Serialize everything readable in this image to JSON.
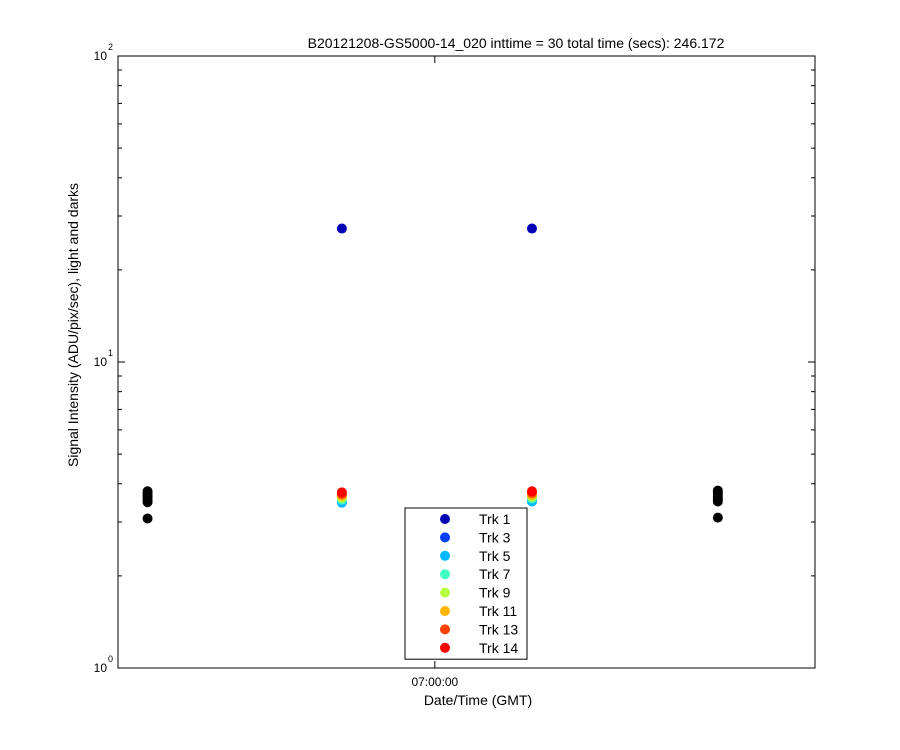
{
  "chart_data": {
    "type": "scatter",
    "title": "B20121208-GS5000-14_020 inttime = 30 total time (secs): 246.172",
    "xlabel": "Date/Time (GMT)",
    "ylabel": "Signal Intensity (ADU/pix/sec), light and darks",
    "yscale": "log",
    "ylim": [
      1,
      100
    ],
    "y_ticks": [
      {
        "value": 1,
        "base": "10",
        "exp": "0"
      },
      {
        "value": 10,
        "base": "10",
        "exp": "1"
      },
      {
        "value": 100,
        "base": "10",
        "exp": "2"
      }
    ],
    "xlim": [
      "06:58:45",
      "07:01:30"
    ],
    "x_ticks": [
      {
        "value": "07:00:00",
        "label": "07:00:00"
      }
    ],
    "legend_position": "bottom-center",
    "series": [
      {
        "name": "Trk 1",
        "color": "#0000b4",
        "points": [
          {
            "x": "06:59:38",
            "y": 27.3
          },
          {
            "x": "07:00:23",
            "y": 27.3
          }
        ]
      },
      {
        "name": "Trk 3",
        "color": "#0040ff",
        "points": [
          {
            "x": "06:59:38",
            "y": 3.5
          },
          {
            "x": "07:00:23",
            "y": 3.52
          }
        ]
      },
      {
        "name": "Trk 5",
        "color": "#00b8ff",
        "points": [
          {
            "x": "06:59:38",
            "y": 3.47
          },
          {
            "x": "07:00:23",
            "y": 3.5
          }
        ]
      },
      {
        "name": "Trk 7",
        "color": "#40ffc0",
        "points": [
          {
            "x": "06:59:38",
            "y": 3.55
          },
          {
            "x": "07:00:23",
            "y": 3.58
          }
        ]
      },
      {
        "name": "Trk 9",
        "color": "#b4ff40",
        "points": [
          {
            "x": "06:59:38",
            "y": 3.6
          },
          {
            "x": "07:00:23",
            "y": 3.63
          }
        ]
      },
      {
        "name": "Trk 11",
        "color": "#ffb400",
        "points": [
          {
            "x": "06:59:38",
            "y": 3.65
          },
          {
            "x": "07:00:23",
            "y": 3.68
          }
        ]
      },
      {
        "name": "Trk 13",
        "color": "#ff4000",
        "points": [
          {
            "x": "06:59:38",
            "y": 3.7
          },
          {
            "x": "07:00:23",
            "y": 3.73
          }
        ]
      },
      {
        "name": "Trk 14",
        "color": "#ff0000",
        "points": [
          {
            "x": "06:59:38",
            "y": 3.75
          },
          {
            "x": "07:00:23",
            "y": 3.78
          }
        ]
      },
      {
        "name": "",
        "color": "#000000",
        "points": [
          {
            "x": "06:58:52",
            "y": 3.08
          },
          {
            "x": "06:58:52",
            "y": 3.48
          },
          {
            "x": "06:58:52",
            "y": 3.54
          },
          {
            "x": "06:58:52",
            "y": 3.6
          },
          {
            "x": "06:58:52",
            "y": 3.66
          },
          {
            "x": "06:58:52",
            "y": 3.72
          },
          {
            "x": "06:58:52",
            "y": 3.78
          },
          {
            "x": "07:01:07",
            "y": 3.1
          },
          {
            "x": "07:01:07",
            "y": 3.5
          },
          {
            "x": "07:01:07",
            "y": 3.56
          },
          {
            "x": "07:01:07",
            "y": 3.62
          },
          {
            "x": "07:01:07",
            "y": 3.68
          },
          {
            "x": "07:01:07",
            "y": 3.74
          },
          {
            "x": "07:01:07",
            "y": 3.8
          }
        ]
      }
    ]
  }
}
